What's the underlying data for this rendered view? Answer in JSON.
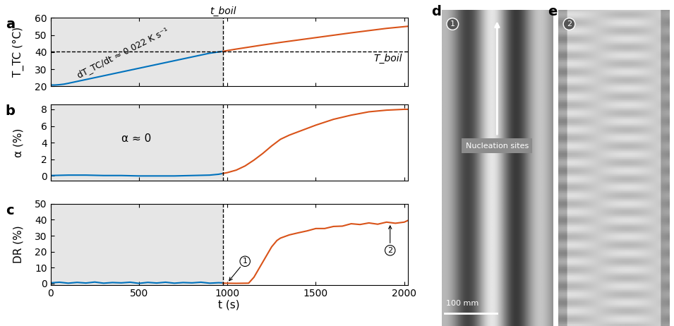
{
  "chart_data": [
    {
      "type": "line",
      "panel": "a",
      "y_label": "T_TC (°C)",
      "xlim": [
        0,
        2020
      ],
      "xticks": [
        0,
        500,
        1000,
        1500,
        2000
      ],
      "ylim": [
        20,
        60
      ],
      "yticks": [
        20,
        30,
        40,
        50,
        60
      ],
      "tick_labels": "y",
      "boil_time": 975,
      "boil_time_label": "t_boil",
      "boil_temperature": 40.5,
      "boil_temperature_label": "T_boil",
      "annotation": "dT_TC/dt ≈ 0.022 K s⁻¹",
      "series": [
        {
          "color": "#0072bd",
          "x": [
            0,
            25,
            50,
            75,
            100,
            150,
            200,
            300,
            400,
            500,
            600,
            700,
            800,
            900,
            975
          ],
          "values": [
            20.8,
            20.8,
            21.0,
            21.3,
            21.8,
            22.9,
            24.0,
            26.2,
            28.4,
            30.6,
            32.8,
            35.0,
            37.2,
            39.4,
            40.5
          ]
        },
        {
          "color": "#d95319",
          "x": [
            975,
            1050,
            1100,
            1200,
            1300,
            1400,
            1500,
            1600,
            1700,
            1800,
            1900,
            2000,
            2020
          ],
          "values": [
            40.5,
            41.8,
            42.6,
            44.2,
            45.7,
            47.1,
            48.5,
            49.9,
            51.3,
            52.6,
            53.9,
            54.9,
            55.1
          ]
        }
      ]
    },
    {
      "type": "line",
      "panel": "b",
      "y_label": "α (%)",
      "xlim": [
        0,
        2020
      ],
      "xticks": [
        0,
        500,
        1000,
        1500,
        2000
      ],
      "ylim": [
        -0.6,
        8.6
      ],
      "yticks": [
        0,
        2,
        4,
        6,
        8
      ],
      "tick_labels": "y",
      "boil_time": 975,
      "annotation": "α ≈ 0",
      "series": [
        {
          "color": "#0072bd",
          "x": [
            0,
            100,
            200,
            300,
            400,
            500,
            600,
            700,
            800,
            900,
            950,
            975
          ],
          "values": [
            0.05,
            0.1,
            0.1,
            0.05,
            0.05,
            0.0,
            0.0,
            0.0,
            0.05,
            0.1,
            0.2,
            0.3
          ]
        },
        {
          "color": "#d95319",
          "x": [
            975,
            1000,
            1050,
            1100,
            1150,
            1200,
            1250,
            1300,
            1350,
            1400,
            1500,
            1600,
            1700,
            1800,
            1900,
            2000,
            2020
          ],
          "values": [
            0.3,
            0.4,
            0.7,
            1.2,
            1.9,
            2.7,
            3.6,
            4.4,
            4.9,
            5.3,
            6.1,
            6.8,
            7.3,
            7.7,
            7.9,
            8.0,
            8.0
          ]
        }
      ]
    },
    {
      "type": "line",
      "panel": "c",
      "y_label": "DR (%)",
      "x_label": "t (s)",
      "xlim": [
        0,
        2020
      ],
      "xticks": [
        0,
        500,
        1000,
        1500,
        2000
      ],
      "ylim": [
        -1,
        50
      ],
      "yticks": [
        0,
        10,
        20,
        30,
        40,
        50
      ],
      "boil_time": 975,
      "points": [
        {
          "label": "1",
          "x": 1000,
          "y": 0.5
        },
        {
          "label": "2",
          "x": 1920,
          "y": 38
        }
      ],
      "series": [
        {
          "color": "#0072bd",
          "x": [
            0,
            50,
            100,
            150,
            200,
            250,
            300,
            350,
            400,
            450,
            500,
            550,
            600,
            650,
            700,
            750,
            800,
            850,
            900,
            950,
            975
          ],
          "values": [
            0.5,
            0.9,
            0.3,
            0.8,
            0.4,
            1.0,
            0.3,
            0.7,
            0.5,
            0.9,
            0.2,
            0.8,
            0.4,
            0.9,
            0.3,
            0.7,
            0.5,
            0.9,
            0.3,
            0.6,
            0.5
          ]
        },
        {
          "color": "#d95319",
          "x": [
            975,
            1050,
            1120,
            1150,
            1200,
            1250,
            1280,
            1300,
            1350,
            1400,
            1450,
            1500,
            1550,
            1600,
            1650,
            1700,
            1750,
            1800,
            1850,
            1900,
            1950,
            2000,
            2020
          ],
          "values": [
            0.3,
            0.2,
            0.3,
            4.0,
            13.5,
            23.0,
            27.0,
            28.5,
            30.5,
            31.8,
            33.0,
            34.5,
            34.5,
            35.8,
            36.0,
            37.5,
            37.0,
            38.0,
            37.2,
            38.5,
            37.8,
            38.5,
            39.5
          ]
        }
      ]
    }
  ],
  "photos": [
    {
      "panel": "d",
      "badge": "1",
      "callout": "Nucleation sites",
      "scale_bar": "100 mm"
    },
    {
      "panel": "e",
      "badge": "2"
    }
  ]
}
